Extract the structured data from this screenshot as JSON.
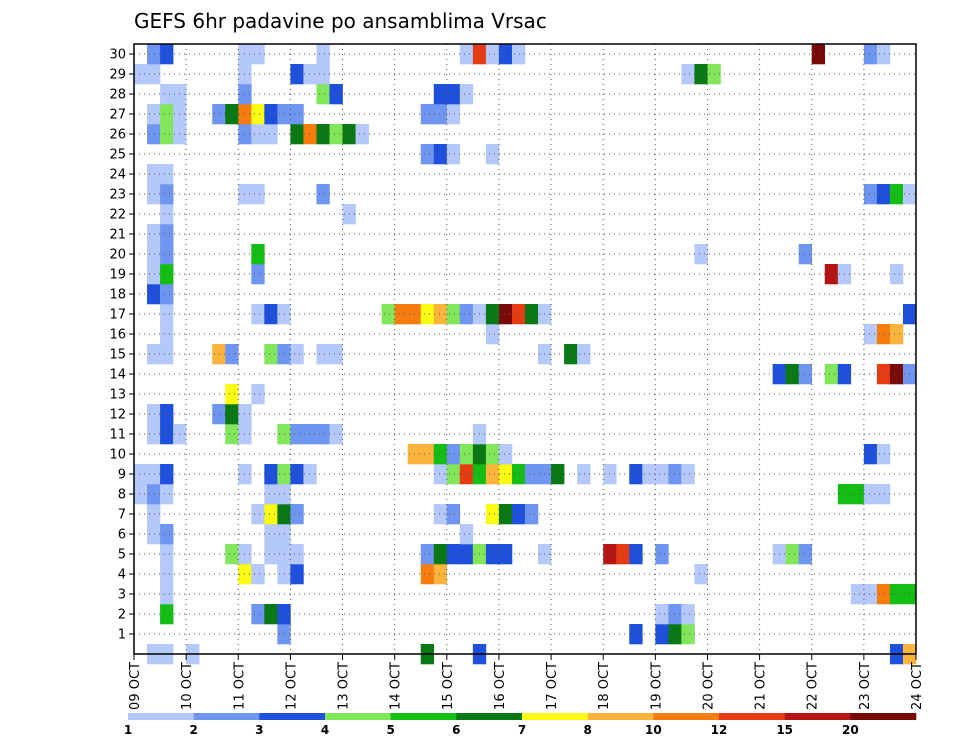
{
  "chart_data": {
    "type": "heatmap",
    "title": "GEFS 6hr padavine po ansamblima Vrsac",
    "xlabel": "",
    "ylabel": "",
    "x_tick_labels": [
      "09 OCT",
      "10 OCT",
      "11 OCT",
      "12 OCT",
      "13 OCT",
      "14 OCT",
      "15 OCT",
      "16 OCT",
      "17 OCT",
      "18 OCT",
      "19 OCT",
      "20 OCT",
      "21 OCT",
      "22 OCT",
      "23 OCT",
      "24 OCT"
    ],
    "y_tick_labels": [
      "1",
      "2",
      "3",
      "4",
      "5",
      "6",
      "7",
      "8",
      "9",
      "10",
      "11",
      "12",
      "13",
      "14",
      "15",
      "16",
      "17",
      "18",
      "19",
      "20",
      "21",
      "22",
      "23",
      "24",
      "25",
      "26",
      "27",
      "28",
      "29",
      "30"
    ],
    "y_range": [
      0,
      30
    ],
    "time_steps": 60,
    "grid": true,
    "colorbar": {
      "levels": [
        "1",
        "2",
        "3",
        "4",
        "5",
        "6",
        "7",
        "8",
        "10",
        "12",
        "15",
        "20"
      ],
      "colors": [
        "#b4c8fa",
        "#6e96f0",
        "#1e50dc",
        "#82e65a",
        "#14be14",
        "#0a7814",
        "#fafa14",
        "#fab43c",
        "#f57d0f",
        "#e63c14",
        "#b41414",
        "#780a0a"
      ]
    },
    "cells": [
      [
        0,
        1,
        1
      ],
      [
        0,
        2,
        1
      ],
      [
        0,
        4,
        1
      ],
      [
        0,
        22,
        6
      ],
      [
        0,
        26,
        3
      ],
      [
        0,
        58,
        3
      ],
      [
        0,
        59,
        8
      ],
      [
        1,
        11,
        2
      ],
      [
        1,
        38,
        3
      ],
      [
        1,
        40,
        3
      ],
      [
        1,
        41,
        6
      ],
      [
        1,
        42,
        4
      ],
      [
        2,
        2,
        5
      ],
      [
        2,
        9,
        2
      ],
      [
        2,
        10,
        6
      ],
      [
        2,
        11,
        3
      ],
      [
        2,
        40,
        1
      ],
      [
        2,
        41,
        2
      ],
      [
        2,
        42,
        1
      ],
      [
        3,
        2,
        1
      ],
      [
        3,
        55,
        1
      ],
      [
        3,
        56,
        1
      ],
      [
        3,
        57,
        9
      ],
      [
        3,
        58,
        5
      ],
      [
        3,
        59,
        5
      ],
      [
        4,
        2,
        1
      ],
      [
        4,
        8,
        7
      ],
      [
        4,
        9,
        1
      ],
      [
        4,
        11,
        1
      ],
      [
        4,
        12,
        3
      ],
      [
        4,
        22,
        9
      ],
      [
        4,
        23,
        8
      ],
      [
        4,
        43,
        1
      ],
      [
        5,
        2,
        1
      ],
      [
        5,
        7,
        4
      ],
      [
        5,
        8,
        1
      ],
      [
        5,
        10,
        1
      ],
      [
        5,
        11,
        1
      ],
      [
        5,
        12,
        1
      ],
      [
        5,
        22,
        2
      ],
      [
        5,
        23,
        6
      ],
      [
        5,
        24,
        3
      ],
      [
        5,
        25,
        3
      ],
      [
        5,
        26,
        4
      ],
      [
        5,
        27,
        3
      ],
      [
        5,
        28,
        3
      ],
      [
        5,
        31,
        1
      ],
      [
        5,
        36,
        11
      ],
      [
        5,
        37,
        10
      ],
      [
        5,
        38,
        3
      ],
      [
        5,
        40,
        2
      ],
      [
        5,
        49,
        1
      ],
      [
        5,
        50,
        4
      ],
      [
        5,
        51,
        2
      ],
      [
        6,
        1,
        1
      ],
      [
        6,
        2,
        2
      ],
      [
        6,
        10,
        1
      ],
      [
        6,
        11,
        1
      ],
      [
        6,
        25,
        1
      ],
      [
        7,
        1,
        1
      ],
      [
        7,
        9,
        1
      ],
      [
        7,
        10,
        7
      ],
      [
        7,
        11,
        6
      ],
      [
        7,
        12,
        2
      ],
      [
        7,
        23,
        1
      ],
      [
        7,
        24,
        2
      ],
      [
        7,
        27,
        7
      ],
      [
        7,
        28,
        6
      ],
      [
        7,
        29,
        3
      ],
      [
        7,
        30,
        2
      ],
      [
        8,
        0,
        1
      ],
      [
        8,
        1,
        2
      ],
      [
        8,
        2,
        1
      ],
      [
        8,
        10,
        1
      ],
      [
        8,
        11,
        1
      ],
      [
        8,
        54,
        5
      ],
      [
        8,
        55,
        5
      ],
      [
        8,
        56,
        1
      ],
      [
        8,
        57,
        1
      ],
      [
        9,
        0,
        1
      ],
      [
        9,
        1,
        1
      ],
      [
        9,
        2,
        3
      ],
      [
        9,
        8,
        1
      ],
      [
        9,
        10,
        3
      ],
      [
        9,
        11,
        4
      ],
      [
        9,
        12,
        3
      ],
      [
        9,
        13,
        1
      ],
      [
        9,
        23,
        1
      ],
      [
        9,
        24,
        4
      ],
      [
        9,
        25,
        10
      ],
      [
        9,
        26,
        5
      ],
      [
        9,
        27,
        8
      ],
      [
        9,
        28,
        7
      ],
      [
        9,
        29,
        5
      ],
      [
        9,
        30,
        2
      ],
      [
        9,
        31,
        2
      ],
      [
        9,
        32,
        6
      ],
      [
        9,
        34,
        1
      ],
      [
        9,
        36,
        1
      ],
      [
        9,
        38,
        3
      ],
      [
        9,
        39,
        1
      ],
      [
        9,
        40,
        1
      ],
      [
        9,
        41,
        2
      ],
      [
        9,
        42,
        1
      ],
      [
        10,
        21,
        8
      ],
      [
        10,
        22,
        8
      ],
      [
        10,
        23,
        5
      ],
      [
        10,
        24,
        2
      ],
      [
        10,
        25,
        4
      ],
      [
        10,
        26,
        6
      ],
      [
        10,
        27,
        4
      ],
      [
        10,
        28,
        1
      ],
      [
        10,
        56,
        3
      ],
      [
        10,
        57,
        1
      ],
      [
        11,
        1,
        1
      ],
      [
        11,
        2,
        3
      ],
      [
        11,
        3,
        1
      ],
      [
        11,
        7,
        4
      ],
      [
        11,
        8,
        1
      ],
      [
        11,
        11,
        4
      ],
      [
        11,
        12,
        2
      ],
      [
        11,
        13,
        2
      ],
      [
        11,
        14,
        2
      ],
      [
        11,
        15,
        1
      ],
      [
        11,
        26,
        1
      ],
      [
        12,
        1,
        1
      ],
      [
        12,
        2,
        3
      ],
      [
        12,
        6,
        2
      ],
      [
        12,
        7,
        6
      ],
      [
        12,
        8,
        1
      ],
      [
        13,
        7,
        7
      ],
      [
        13,
        9,
        1
      ],
      [
        14,
        49,
        3
      ],
      [
        14,
        50,
        6
      ],
      [
        14,
        51,
        2
      ],
      [
        14,
        53,
        4
      ],
      [
        14,
        54,
        3
      ],
      [
        14,
        57,
        10
      ],
      [
        14,
        58,
        12
      ],
      [
        14,
        59,
        2
      ],
      [
        15,
        1,
        1
      ],
      [
        15,
        2,
        1
      ],
      [
        15,
        6,
        8
      ],
      [
        15,
        7,
        2
      ],
      [
        15,
        10,
        4
      ],
      [
        15,
        11,
        2
      ],
      [
        15,
        12,
        1
      ],
      [
        15,
        14,
        1
      ],
      [
        15,
        15,
        1
      ],
      [
        15,
        31,
        1
      ],
      [
        15,
        33,
        6
      ],
      [
        15,
        34,
        1
      ],
      [
        16,
        2,
        1
      ],
      [
        16,
        27,
        1
      ],
      [
        16,
        56,
        1
      ],
      [
        16,
        57,
        9
      ],
      [
        16,
        58,
        8
      ],
      [
        17,
        2,
        1
      ],
      [
        17,
        9,
        1
      ],
      [
        17,
        10,
        3
      ],
      [
        17,
        11,
        1
      ],
      [
        17,
        19,
        4
      ],
      [
        17,
        20,
        9
      ],
      [
        17,
        21,
        9
      ],
      [
        17,
        22,
        7
      ],
      [
        17,
        23,
        8
      ],
      [
        17,
        24,
        4
      ],
      [
        17,
        25,
        2
      ],
      [
        17,
        26,
        1
      ],
      [
        17,
        27,
        6
      ],
      [
        17,
        28,
        12
      ],
      [
        17,
        29,
        10
      ],
      [
        17,
        30,
        6
      ],
      [
        17,
        31,
        1
      ],
      [
        17,
        59,
        3
      ],
      [
        18,
        1,
        3
      ],
      [
        18,
        2,
        2
      ],
      [
        19,
        1,
        1
      ],
      [
        19,
        2,
        5
      ],
      [
        19,
        9,
        2
      ],
      [
        19,
        53,
        11
      ],
      [
        19,
        54,
        1
      ],
      [
        19,
        58,
        1
      ],
      [
        20,
        1,
        1
      ],
      [
        20,
        2,
        2
      ],
      [
        20,
        9,
        5
      ],
      [
        20,
        43,
        1
      ],
      [
        20,
        51,
        2
      ],
      [
        21,
        1,
        1
      ],
      [
        21,
        2,
        2
      ],
      [
        22,
        2,
        1
      ],
      [
        22,
        16,
        1
      ],
      [
        23,
        1,
        1
      ],
      [
        23,
        2,
        2
      ],
      [
        23,
        8,
        1
      ],
      [
        23,
        9,
        1
      ],
      [
        23,
        14,
        2
      ],
      [
        23,
        56,
        2
      ],
      [
        23,
        57,
        3
      ],
      [
        23,
        58,
        5
      ],
      [
        23,
        59,
        1
      ],
      [
        24,
        1,
        1
      ],
      [
        24,
        2,
        1
      ],
      [
        25,
        22,
        2
      ],
      [
        25,
        23,
        3
      ],
      [
        25,
        24,
        1
      ],
      [
        25,
        27,
        1
      ],
      [
        26,
        1,
        2
      ],
      [
        26,
        2,
        4
      ],
      [
        26,
        3,
        1
      ],
      [
        26,
        8,
        2
      ],
      [
        26,
        9,
        1
      ],
      [
        26,
        10,
        1
      ],
      [
        26,
        12,
        6
      ],
      [
        26,
        13,
        9
      ],
      [
        26,
        14,
        6
      ],
      [
        26,
        15,
        4
      ],
      [
        26,
        16,
        6
      ],
      [
        26,
        17,
        1
      ],
      [
        27,
        1,
        1
      ],
      [
        27,
        2,
        4
      ],
      [
        27,
        3,
        1
      ],
      [
        27,
        6,
        2
      ],
      [
        27,
        7,
        6
      ],
      [
        27,
        8,
        9
      ],
      [
        27,
        9,
        7
      ],
      [
        27,
        10,
        3
      ],
      [
        27,
        11,
        2
      ],
      [
        27,
        12,
        2
      ],
      [
        27,
        22,
        2
      ],
      [
        27,
        23,
        2
      ],
      [
        27,
        24,
        1
      ],
      [
        28,
        2,
        1
      ],
      [
        28,
        3,
        1
      ],
      [
        28,
        8,
        2
      ],
      [
        28,
        14,
        4
      ],
      [
        28,
        15,
        3
      ],
      [
        28,
        23,
        3
      ],
      [
        28,
        24,
        3
      ],
      [
        28,
        25,
        1
      ],
      [
        29,
        0,
        1
      ],
      [
        29,
        1,
        1
      ],
      [
        29,
        8,
        1
      ],
      [
        29,
        12,
        3
      ],
      [
        29,
        13,
        1
      ],
      [
        29,
        14,
        1
      ],
      [
        29,
        42,
        1
      ],
      [
        29,
        43,
        6
      ],
      [
        29,
        44,
        4
      ],
      [
        30,
        1,
        2
      ],
      [
        30,
        2,
        3
      ],
      [
        30,
        8,
        1
      ],
      [
        30,
        9,
        1
      ],
      [
        30,
        14,
        1
      ],
      [
        30,
        25,
        1
      ],
      [
        30,
        26,
        10
      ],
      [
        30,
        27,
        1
      ],
      [
        30,
        28,
        3
      ],
      [
        30,
        29,
        1
      ],
      [
        30,
        52,
        12
      ],
      [
        30,
        56,
        2
      ],
      [
        30,
        57,
        1
      ]
    ]
  }
}
